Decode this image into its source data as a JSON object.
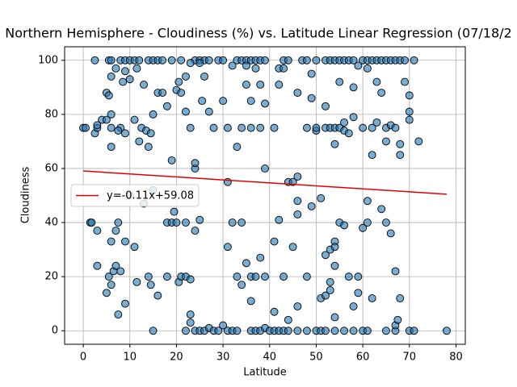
{
  "chart_data": {
    "type": "scatter",
    "title": "Northern Hemisphere - Cloudiness (%) vs. Latitude Linear Regression (07/18/2",
    "xlabel": "Latitude",
    "ylabel": "Cloudiness",
    "color": "#1f77b4",
    "x": [
      2.5,
      5.5,
      6,
      8,
      9,
      10,
      11,
      12,
      14,
      15,
      16,
      17,
      19,
      21,
      24,
      25,
      26,
      27,
      29,
      30,
      33,
      34,
      35,
      36,
      37,
      38,
      39,
      43,
      44,
      47,
      48,
      50,
      52,
      53,
      54,
      55,
      56,
      57,
      58,
      60,
      61,
      62,
      63,
      64,
      65,
      66,
      67,
      68,
      69,
      71,
      15,
      22,
      24,
      25,
      26,
      27,
      28,
      29,
      30,
      31,
      32,
      33,
      36,
      37,
      38,
      39,
      40,
      41,
      42,
      43,
      44,
      46,
      48,
      50,
      51,
      52,
      54,
      56,
      58,
      60,
      61,
      65,
      67,
      70,
      71,
      78,
      0,
      0.5,
      2.5,
      3,
      3,
      4,
      5,
      5,
      5.5,
      6,
      6,
      6,
      6,
      7,
      8,
      7.5,
      8.5,
      9,
      9,
      10,
      11,
      11.5,
      12,
      12.5,
      13,
      13.5,
      14,
      14.5,
      15,
      16,
      17,
      18,
      19,
      20,
      20.5,
      21,
      22,
      22,
      23,
      23,
      24,
      24,
      25,
      25.5,
      26,
      27,
      28,
      30,
      31,
      32,
      33,
      34,
      35,
      35,
      36,
      36,
      37,
      38,
      38,
      39,
      39,
      41,
      42,
      42,
      43,
      44,
      45,
      46,
      46,
      48,
      49,
      49,
      50,
      50,
      52,
      52,
      53,
      54,
      54,
      55,
      55,
      56,
      56,
      57,
      58,
      58,
      59,
      60,
      61,
      62,
      62,
      63,
      63,
      64,
      65,
      65,
      66,
      67,
      68,
      68,
      69,
      70,
      70,
      70,
      72,
      1.5,
      1.8,
      3,
      3,
      5,
      5.5,
      6,
      6,
      6.5,
      7,
      7,
      7.5,
      7.5,
      8,
      9,
      9,
      10,
      11,
      11.5,
      13,
      14,
      14.5,
      15,
      16,
      18,
      18,
      19,
      19.5,
      20,
      20.5,
      21,
      22,
      22,
      23,
      23,
      23,
      24,
      25,
      31,
      31,
      32,
      33,
      34,
      34,
      35,
      36,
      36,
      37,
      38,
      39,
      41,
      41,
      42,
      43,
      44,
      45,
      46,
      46,
      46,
      48,
      49,
      51,
      51,
      52,
      52,
      53,
      53,
      53,
      54,
      54,
      54,
      54,
      55,
      56,
      57,
      58,
      59,
      59,
      60,
      61,
      61,
      62,
      64,
      65,
      66,
      67,
      67,
      68,
      67.5
    ],
    "values": [
      100,
      100,
      100,
      100,
      100,
      100,
      100,
      100,
      100,
      100,
      100,
      100,
      100,
      100,
      100,
      100,
      100,
      100,
      100,
      100,
      100,
      100,
      100,
      100,
      100,
      100,
      100,
      100,
      100,
      100,
      100,
      100,
      100,
      100,
      100,
      100,
      100,
      100,
      100,
      100,
      100,
      100,
      100,
      100,
      100,
      100,
      100,
      100,
      100,
      100,
      0,
      0,
      0,
      0,
      0,
      1,
      0,
      0,
      2,
      0,
      0,
      0,
      0,
      0,
      0,
      1,
      0,
      0,
      0,
      0,
      0,
      0,
      0,
      0,
      0,
      0,
      0,
      0,
      0,
      0,
      0,
      0,
      0,
      0,
      0,
      0,
      75,
      75,
      73,
      75,
      76,
      78,
      78,
      88,
      87,
      80,
      75,
      68,
      94,
      97,
      75,
      74,
      92,
      96,
      73,
      93,
      78,
      97,
      70,
      75,
      91,
      74,
      68,
      73,
      80,
      88,
      88,
      83,
      63,
      89,
      92,
      88,
      94,
      81,
      75,
      99,
      60,
      62,
      99,
      85,
      94,
      81,
      75,
      85,
      75,
      98,
      68,
      75,
      98,
      91,
      85,
      75,
      97,
      91,
      75,
      84,
      60,
      75,
      97,
      91,
      97,
      55,
      55,
      88,
      57,
      75,
      86,
      95,
      74,
      75,
      83,
      75,
      75,
      69,
      75,
      92,
      75,
      74,
      77,
      73,
      90,
      79,
      98,
      75,
      97,
      65,
      75,
      92,
      77,
      88,
      75,
      70,
      76,
      75,
      69,
      65,
      92,
      87,
      81,
      78,
      70,
      40,
      40,
      37,
      24,
      14,
      20,
      33,
      17,
      22,
      37,
      24,
      40,
      6,
      22,
      33,
      10,
      50,
      31,
      18,
      47,
      20,
      17,
      52,
      13,
      40,
      20,
      40,
      44,
      40,
      18,
      20,
      40,
      20,
      19,
      6,
      3,
      37,
      41,
      55,
      31,
      40,
      20,
      40,
      17,
      25,
      20,
      11,
      20,
      27,
      20,
      33,
      7,
      41,
      20,
      4,
      31,
      48,
      43,
      9,
      20,
      46,
      49,
      12,
      28,
      13,
      30,
      18,
      15,
      33,
      31,
      24,
      5,
      40,
      39,
      20,
      9,
      14,
      20,
      38,
      48,
      40,
      12,
      45,
      40,
      36,
      2,
      22,
      12,
      4
    ],
    "xlim": [
      -4,
      82
    ],
    "ylim": [
      -5,
      105
    ],
    "xticks": [
      0,
      10,
      20,
      30,
      40,
      50,
      60,
      70,
      80
    ],
    "yticks": [
      0,
      20,
      40,
      60,
      80,
      100
    ],
    "grid": true,
    "regression": {
      "label": "y=-0.11x+59.08",
      "color": "#e00000",
      "x": [
        0,
        78
      ],
      "values": [
        59.08,
        50.5
      ]
    },
    "legend": "left"
  }
}
